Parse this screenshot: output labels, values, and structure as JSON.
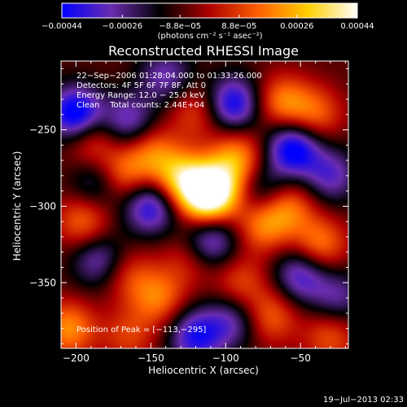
{
  "chart_data": {
    "type": "heatmap",
    "title": "Reconstructed RHESSI Image",
    "xlabel": "Heliocentric X (arcsec)",
    "ylabel": "Heliocentric Y (arcsec)",
    "xlim": [
      -210,
      -18
    ],
    "ylim": [
      -393,
      -205
    ],
    "x_ticks": [
      {
        "value": -200,
        "label": "−200"
      },
      {
        "value": -150,
        "label": "−150"
      },
      {
        "value": -100,
        "label": "−100"
      },
      {
        "value": -50,
        "label": "−50"
      }
    ],
    "y_ticks": [
      {
        "value": -250,
        "label": "−250"
      },
      {
        "value": -300,
        "label": "−300"
      },
      {
        "value": -350,
        "label": "−350"
      }
    ],
    "colorbar": {
      "min": -0.00044,
      "max": 0.00044,
      "ticks": [
        {
          "value": -0.00044,
          "label": "−0.00044"
        },
        {
          "value": -0.00026,
          "label": "−0.00026"
        },
        {
          "value": -8.8e-05,
          "label": "−8.8e−05"
        },
        {
          "value": 8.8e-05,
          "label": "8.8e−05"
        },
        {
          "value": 0.00026,
          "label": "0.00026"
        },
        {
          "value": 0.00044,
          "label": "0.00044"
        }
      ],
      "units": "(photons cm⁻² s⁻¹ asec⁻²)",
      "colors": [
        "#0000ff",
        "#6a2cb0",
        "#000000",
        "#b00000",
        "#ff6000",
        "#ffd000",
        "#ffffff"
      ]
    },
    "annotations": {
      "time_range": "22−Sep−2006 01:28:04.000 to 01:33:26.000",
      "detectors": "Detectors: 4F 5F 6F 7F 8F, Att 0",
      "energy": "Energy Range: 12.0 − 25.0 keV",
      "clean": "Clean    Total counts: 2.44E+04",
      "peak": "Position of Peak = [−113,−295]"
    },
    "peak": {
      "x": -113,
      "y": -295
    },
    "sources": [
      {
        "x": -113,
        "y": -295,
        "v": 0.00044
      },
      {
        "x": -130,
        "y": -282,
        "v": 0.00036
      },
      {
        "x": -105,
        "y": -287,
        "v": 0.0003
      },
      {
        "x": -170,
        "y": -280,
        "v": 0.00026
      },
      {
        "x": -190,
        "y": -256,
        "v": 0.00022
      },
      {
        "x": -150,
        "y": -265,
        "v": 0.00024
      },
      {
        "x": -92,
        "y": -268,
        "v": 0.00028
      },
      {
        "x": -75,
        "y": -312,
        "v": 0.00026
      },
      {
        "x": -58,
        "y": -300,
        "v": 0.00024
      },
      {
        "x": -37,
        "y": -325,
        "v": 0.00026
      },
      {
        "x": -195,
        "y": -310,
        "v": 0.00024
      },
      {
        "x": -205,
        "y": -380,
        "v": 0.00028
      },
      {
        "x": -145,
        "y": -360,
        "v": 0.00024
      },
      {
        "x": -165,
        "y": -345,
        "v": 0.00016
      },
      {
        "x": -125,
        "y": -335,
        "v": 0.00014
      },
      {
        "x": -90,
        "y": -350,
        "v": 0.00018
      },
      {
        "x": -62,
        "y": -232,
        "v": 0.00026
      },
      {
        "x": -40,
        "y": -240,
        "v": 0.00022
      },
      {
        "x": -70,
        "y": -372,
        "v": 0.00022
      },
      {
        "x": -30,
        "y": -385,
        "v": 0.0002
      },
      {
        "x": -120,
        "y": -238,
        "v": 0.00018
      },
      {
        "x": -165,
        "y": -385,
        "v": 0.00016
      },
      {
        "x": -200,
        "y": -240,
        "v": -0.00044
      },
      {
        "x": -95,
        "y": -233,
        "v": -0.00036
      },
      {
        "x": -55,
        "y": -262,
        "v": -0.0004
      },
      {
        "x": -150,
        "y": -300,
        "v": -0.00034
      },
      {
        "x": -165,
        "y": -245,
        "v": -0.00026
      },
      {
        "x": -185,
        "y": -285,
        "v": -0.00022
      },
      {
        "x": -110,
        "y": -322,
        "v": -0.0003
      },
      {
        "x": -50,
        "y": -345,
        "v": -0.00028
      },
      {
        "x": -120,
        "y": -385,
        "v": -0.00032
      },
      {
        "x": -185,
        "y": -335,
        "v": -0.00024
      },
      {
        "x": -75,
        "y": -290,
        "v": -0.0002
      },
      {
        "x": -30,
        "y": -280,
        "v": -0.00024
      },
      {
        "x": -95,
        "y": -375,
        "v": -0.00022
      },
      {
        "x": -25,
        "y": -360,
        "v": -0.0002
      },
      {
        "x": -140,
        "y": -215,
        "v": -0.00022
      }
    ]
  },
  "footer": {
    "timestamp": "19−Jul−2013 02:33"
  }
}
